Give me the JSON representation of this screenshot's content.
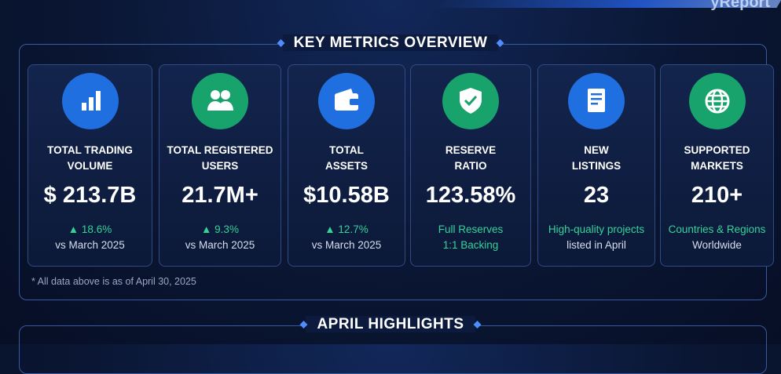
{
  "corner_text": "yReport",
  "section_title": "KEY METRICS OVERVIEW",
  "cards": [
    {
      "label": [
        "TOTAL TRADING",
        "VOLUME"
      ],
      "value": "$ 213.7B",
      "change": "18.6%",
      "white": [
        "vs March 2025"
      ]
    },
    {
      "label": [
        "TOTAL REGISTERED",
        "USERS"
      ],
      "value": "21.7M+",
      "change": "9.3%",
      "white": [
        "vs March 2025"
      ]
    },
    {
      "label": [
        "TOTAL",
        "ASSETS"
      ],
      "value": "$10.58B",
      "change": "12.7%",
      "white": [
        "vs March 2025"
      ]
    },
    {
      "label": [
        "RESERVE",
        "RATIO"
      ],
      "value": "123.58%",
      "green": [
        "Full Reserves",
        "1:1 Backing"
      ]
    },
    {
      "label": [
        "NEW",
        "LISTINGS"
      ],
      "value": "23",
      "green": [
        "High-quality projects"
      ],
      "white": [
        "listed in April"
      ]
    },
    {
      "label": [
        "SUPPORTED",
        "MARKETS"
      ],
      "value": "210+",
      "green": [
        "Countries & Regions"
      ],
      "white": [
        "Worldwide"
      ]
    }
  ],
  "footnote": "* All data above is as of April 30, 2025",
  "next_section_title": "APRIL HIGHLIGHTS"
}
